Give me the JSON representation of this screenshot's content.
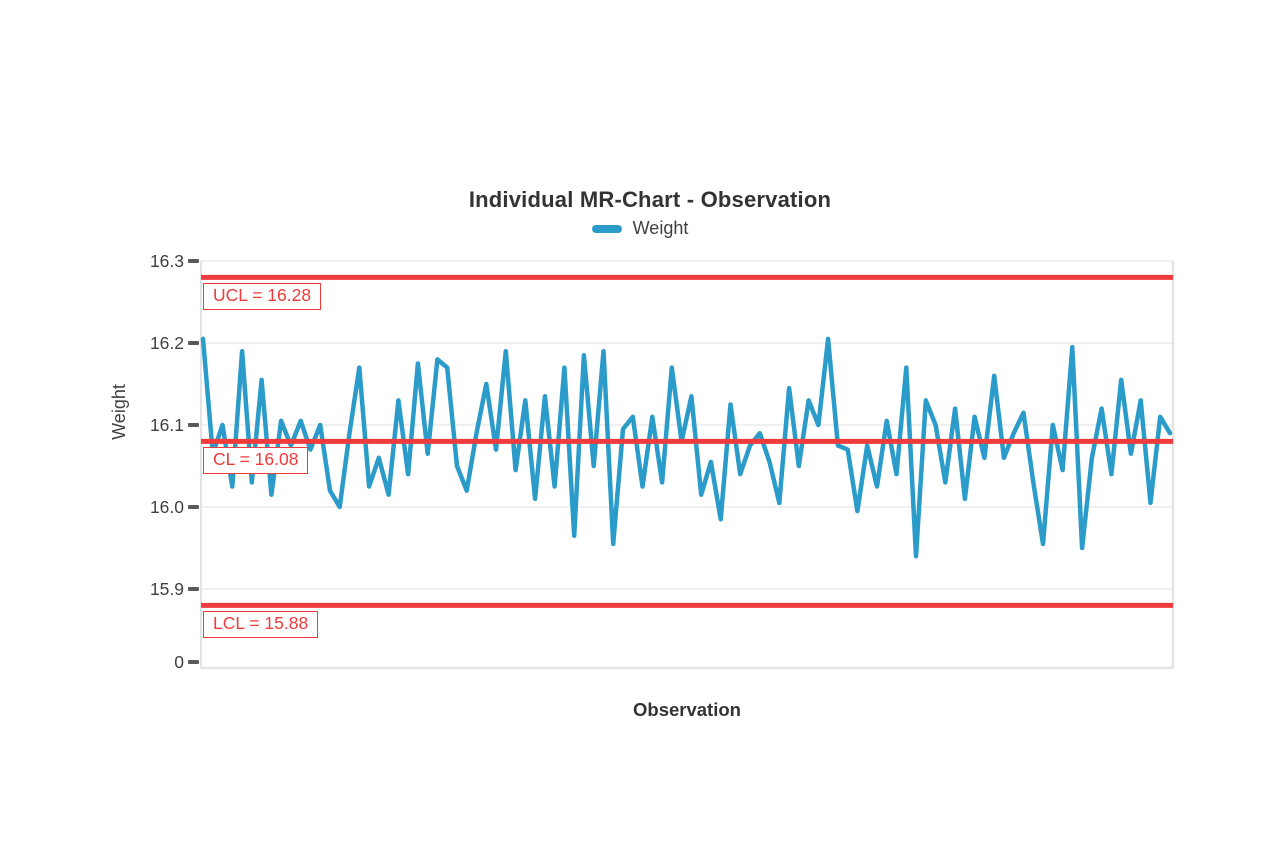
{
  "chart_data": {
    "type": "line",
    "title": "Individual MR-Chart - Observation",
    "xlabel": "Observation",
    "ylabel": "Weight",
    "legend": [
      "Weight"
    ],
    "grid": "horizontal",
    "legend_position": "top-center",
    "yticks": [
      {
        "label": "16.3",
        "value": 16.3
      },
      {
        "label": "16.2",
        "value": 16.2
      },
      {
        "label": "16.1",
        "value": 16.1
      },
      {
        "label": "16.0",
        "value": 16.0
      },
      {
        "label": "15.9",
        "value": 15.9
      },
      {
        "label": "0",
        "value": 0
      }
    ],
    "ylim": [
      15.84,
      16.3
    ],
    "limits": {
      "ucl": {
        "label": "UCL = 16.28",
        "value": 16.28
      },
      "cl": {
        "label": "CL = 16.08",
        "value": 16.08
      },
      "lcl": {
        "label": "LCL = 15.88",
        "value": 15.88
      }
    },
    "colors": {
      "series": "#2B9BC9",
      "limit_line": "#EF3B3B",
      "grid_line": "#ebebeb",
      "axis_border": "#e3e3e3",
      "tick": "#595959",
      "text_dark": "#333333",
      "text_gray": "#404040"
    },
    "series": [
      {
        "name": "Weight",
        "values": [
          16.205,
          16.065,
          16.1,
          16.025,
          16.19,
          16.03,
          16.155,
          16.015,
          16.105,
          16.075,
          16.105,
          16.07,
          16.1,
          16.02,
          16.0,
          16.09,
          16.17,
          16.025,
          16.06,
          16.015,
          16.13,
          16.04,
          16.175,
          16.065,
          16.18,
          16.17,
          16.05,
          16.02,
          16.09,
          16.15,
          16.07,
          16.19,
          16.045,
          16.13,
          16.01,
          16.135,
          16.025,
          16.17,
          15.965,
          16.185,
          16.05,
          16.19,
          15.955,
          16.095,
          16.11,
          16.025,
          16.11,
          16.03,
          16.17,
          16.08,
          16.135,
          16.015,
          16.055,
          15.985,
          16.125,
          16.04,
          16.075,
          16.09,
          16.055,
          16.005,
          16.145,
          16.05,
          16.13,
          16.1,
          16.205,
          16.075,
          16.07,
          15.995,
          16.075,
          16.025,
          16.105,
          16.04,
          16.17,
          15.94,
          16.13,
          16.1,
          16.03,
          16.12,
          16.01,
          16.11,
          16.06,
          16.16,
          16.06,
          16.09,
          16.115,
          16.03,
          15.955,
          16.1,
          16.045,
          16.195,
          15.95,
          16.06,
          16.12,
          16.04,
          16.155,
          16.065,
          16.13,
          16.005,
          16.11,
          16.09
        ]
      }
    ]
  }
}
